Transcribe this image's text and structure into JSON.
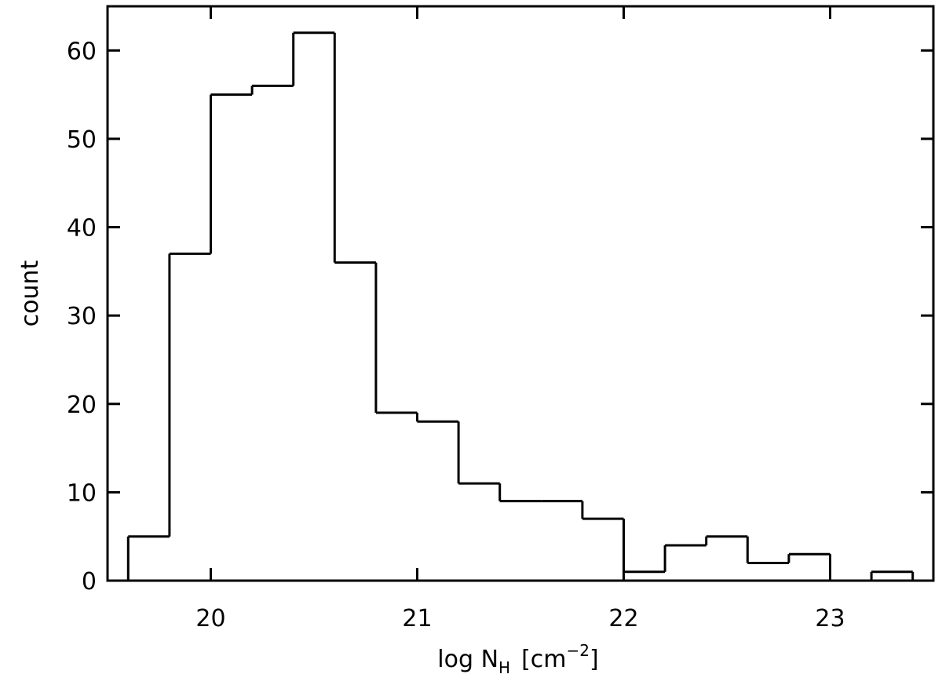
{
  "chart_data": {
    "type": "histogram",
    "bins": [
      19.6,
      19.8,
      20.0,
      20.2,
      20.4,
      20.6,
      20.8,
      21.0,
      21.2,
      21.4,
      21.6,
      21.8,
      22.0,
      22.2,
      22.4,
      22.6,
      22.8,
      23.0,
      23.2,
      23.4
    ],
    "values": [
      5,
      37,
      55,
      56,
      62,
      36,
      19,
      18,
      11,
      9,
      9,
      7,
      1,
      4,
      5,
      2,
      3,
      0,
      1
    ],
    "color": "#000000",
    "xlabel": {
      "main": "log N",
      "sub": "H",
      "unit": "[cm",
      "sup": "−2",
      "close": "]"
    },
    "ylabel": "count",
    "xlim": [
      19.5,
      23.5
    ],
    "xticks": [
      20,
      21,
      22,
      23
    ],
    "ylim": [
      0,
      65
    ],
    "yticks": [
      0,
      10,
      20,
      30,
      40,
      50,
      60
    ],
    "grid": false
  }
}
